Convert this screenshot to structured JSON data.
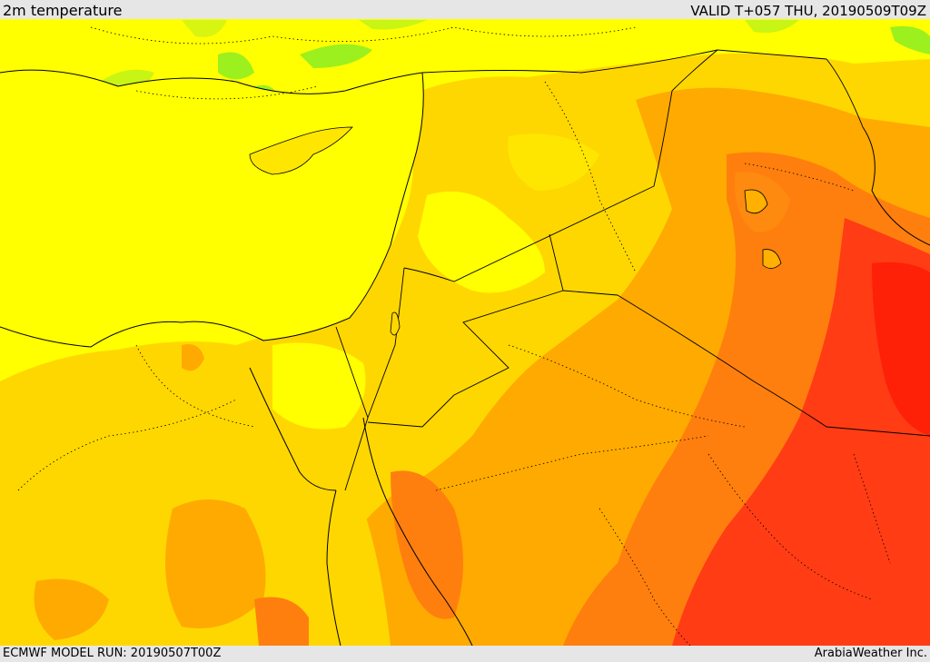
{
  "header": {
    "title": "2m temperature",
    "valid": "VALID T+057 THU, 20190509T09Z"
  },
  "footer": {
    "model_run": "ECMWF MODEL RUN: 20190507T00Z",
    "credit": "ArabiaWeather Inc."
  },
  "map": {
    "field": "2m temperature",
    "colors": {
      "green": "#9cf01e",
      "light_green": "#d7f510",
      "yellow": "#ffff00",
      "light_orange": "#ffd700",
      "orange": "#ffaa00",
      "dark_orange": "#ff7f0e",
      "red": "#ff3c14",
      "dark_red": "#ff2008",
      "border": "#000000"
    }
  }
}
